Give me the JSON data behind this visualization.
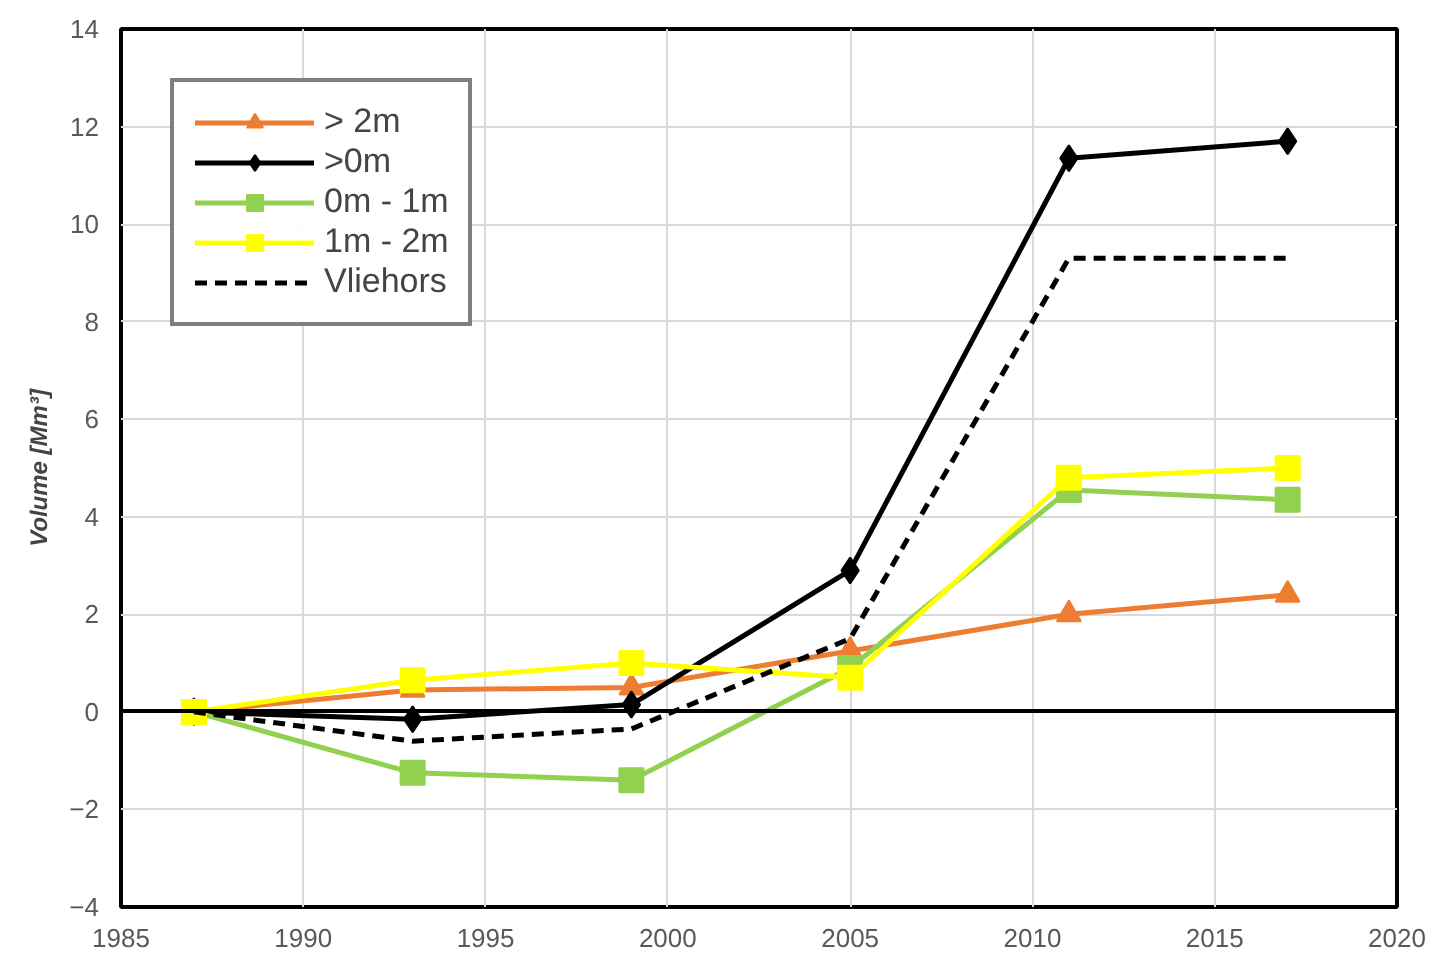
{
  "chart_data": {
    "type": "line",
    "ylabel": "Volume [Mm³]",
    "x": [
      1987,
      1993,
      1999,
      2005,
      2011,
      2017
    ],
    "xlim": [
      1985,
      2020
    ],
    "xticks": [
      1985,
      1990,
      1995,
      2000,
      2005,
      2010,
      2015,
      2020
    ],
    "ylim": [
      -4,
      14
    ],
    "yticks": [
      -4,
      -2,
      0,
      2,
      4,
      6,
      8,
      10,
      12,
      14
    ],
    "grid": true,
    "legend": "top left",
    "series": [
      {
        "name": "> 2m",
        "color": "#ed7d31",
        "marker": "triangle",
        "values": [
          0,
          0.45,
          0.5,
          1.25,
          2.0,
          2.4
        ]
      },
      {
        "name": ">0m",
        "color": "#000000",
        "marker": "diamond",
        "values": [
          0,
          -0.15,
          0.15,
          2.9,
          11.35,
          11.7
        ]
      },
      {
        "name": "0m - 1m",
        "color": "#92d050",
        "marker": "square",
        "values": [
          0,
          -1.25,
          -1.4,
          0.9,
          4.55,
          4.35
        ]
      },
      {
        "name": "1m - 2m",
        "color": "#ffff00",
        "marker": "square",
        "values": [
          0,
          0.65,
          1.0,
          0.7,
          4.8,
          5.0
        ]
      },
      {
        "name": "Vliehors",
        "color": "#000000",
        "marker": "none",
        "line_style": "dashed",
        "values": [
          0,
          -0.6,
          -0.35,
          1.5,
          9.3,
          9.3
        ]
      }
    ]
  }
}
